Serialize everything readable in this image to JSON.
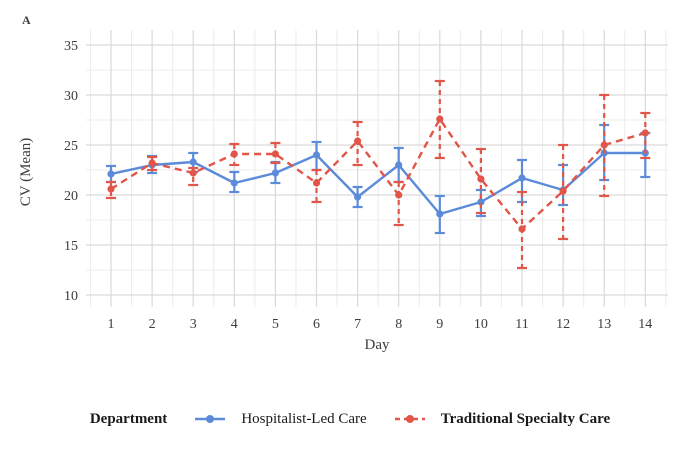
{
  "figure": {
    "panel_label": "A",
    "background": "#ffffff"
  },
  "chart_data": {
    "type": "line",
    "title": "",
    "xlabel": "Day",
    "ylabel": "CV (Mean)",
    "x": [
      1,
      2,
      3,
      4,
      5,
      6,
      7,
      8,
      9,
      10,
      11,
      12,
      13,
      14
    ],
    "x_tick_labels": [
      "1",
      "2",
      "3",
      "4",
      "5",
      "6",
      "7",
      "8",
      "9",
      "10",
      "11",
      "12",
      "13",
      "14"
    ],
    "yticks": [
      10,
      15,
      20,
      25,
      30,
      35
    ],
    "ylim": [
      8.8,
      36.5
    ],
    "grid": "major and minor, light gray on white",
    "legend_position": "bottom",
    "legend_title": "Department",
    "series": [
      {
        "name": "Hospitalist-Led Care",
        "color": "#5b8bd9",
        "line_style": "solid",
        "marker": "circle",
        "means": [
          22.1,
          23.0,
          23.3,
          21.2,
          22.2,
          24.0,
          19.8,
          23.0,
          18.1,
          19.3,
          21.7,
          20.5,
          24.2,
          24.2
        ],
        "upper": [
          22.9,
          23.9,
          24.2,
          22.3,
          23.3,
          25.3,
          20.8,
          24.7,
          19.9,
          20.5,
          23.5,
          23.0,
          27.0,
          26.2
        ],
        "lower": [
          21.3,
          22.2,
          22.3,
          20.3,
          21.2,
          22.5,
          18.8,
          21.3,
          16.2,
          17.9,
          19.3,
          19.0,
          21.5,
          21.8
        ]
      },
      {
        "name": "Traditional Specialty Care",
        "color": "#e25549",
        "line_style": "dashed",
        "marker": "circle",
        "means": [
          20.6,
          23.2,
          22.2,
          24.1,
          24.1,
          21.2,
          25.4,
          20.0,
          27.6,
          21.6,
          16.6,
          20.4,
          25.0,
          26.2
        ],
        "upper": [
          21.3,
          23.8,
          22.7,
          25.1,
          25.2,
          22.5,
          27.3,
          21.3,
          31.4,
          24.6,
          20.3,
          25.0,
          30.0,
          28.2
        ],
        "lower": [
          19.7,
          22.5,
          21.0,
          23.0,
          23.2,
          19.3,
          23.0,
          17.0,
          23.7,
          18.2,
          12.7,
          15.6,
          19.9,
          23.7
        ]
      }
    ],
    "colors": {
      "grid_major": "#d9d9d9",
      "grid_minor": "#ececec",
      "text": "#3d3d3d"
    }
  }
}
